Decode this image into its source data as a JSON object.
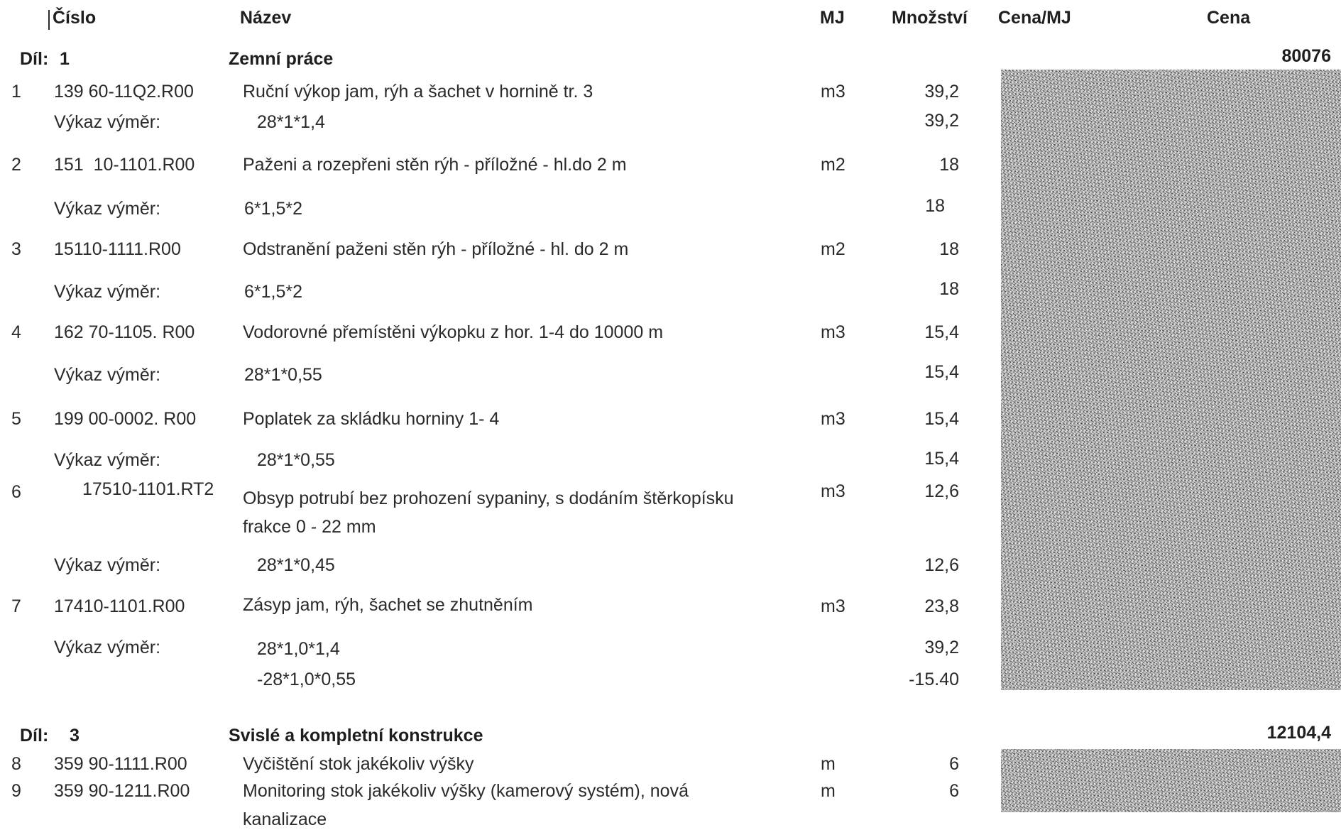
{
  "header": {
    "cislo": "Číslo",
    "nazev": "Název",
    "mj": "MJ",
    "mnozstvi": "Množství",
    "cena_mj": "Cena/MJ",
    "cena": "Cena"
  },
  "sections": [
    {
      "dil_label": "Díl:",
      "dil_number": "1",
      "title": "Zemní práce",
      "total": "80076"
    },
    {
      "dil_label": "Díl:",
      "dil_number": "3",
      "title": "Svislé a kompletní konstrukce",
      "total": "12104,4"
    }
  ],
  "items": [
    {
      "no": "1",
      "code": "139 60-11Q2.R00",
      "name": "Ruční výkop jam, rýh a šachet v hornině tr. 3",
      "mj": "m3",
      "qty": "39,2"
    },
    {
      "no": "2",
      "code": "151  10-1101.R00",
      "name": "Paženi a rozepřeni stěn rýh - příložné - hl.do 2 m",
      "mj": "m2",
      "qty": "18"
    },
    {
      "no": "3",
      "code": "15110-1111.R00",
      "name": "Odstranění paženi stěn rýh - příložné - hl. do 2 m",
      "mj": "m2",
      "qty": "18"
    },
    {
      "no": "4",
      "code": "162 70-1105. R00",
      "name": "Vodorovné přemístěni výkopku z hor. 1-4 do 10000 m",
      "mj": "m3",
      "qty": "15,4"
    },
    {
      "no": "5",
      "code": "199 00-0002. R00",
      "name": "Poplatek za skládku horniny 1- 4",
      "mj": "m3",
      "qty": "15,4"
    },
    {
      "no": "6",
      "code": "17510-1101.RT2",
      "name": "Obsyp potrubí bez prohození sypaniny, s dodáním štěrkopísku",
      "name_line2": "frakce 0 - 22 mm",
      "mj": "m3",
      "qty": "12,6"
    },
    {
      "no": "7",
      "code": "17410-1101.R00",
      "name": "Zásyp jam, rýh, šachet se zhutněním",
      "mj": "m3",
      "qty": "23,8"
    },
    {
      "no": "8",
      "code": "359 90-1111.R00",
      "name": "Vyčištění stok jakékoliv výšky",
      "mj": "m",
      "qty": "6"
    },
    {
      "no": "9",
      "code": "359 90-1211.R00",
      "name": "Monitoring stok jakékoliv výšky (kamerový systém), nová",
      "name_line2": "kanalizace",
      "mj": "m",
      "qty": "6"
    }
  ],
  "vykaz": [
    {
      "label": "Výkaz výměr:",
      "formula": "28*1*1,4",
      "qty": "39,2"
    },
    {
      "label": "Výkaz výměr:",
      "formula": "6*1,5*2",
      "qty": "18"
    },
    {
      "label": "Výkaz výměr:",
      "formula": "6*1,5*2",
      "qty": "18"
    },
    {
      "label": "Výkaz výměr:",
      "formula": "28*1*0,55",
      "qty": "15,4"
    },
    {
      "label": "Výkaz výměr:",
      "formula": "28*1*0,55",
      "qty": "15,4"
    },
    {
      "label": "Výkaz výměr:",
      "formula": "28*1*0,45",
      "qty": "12,6"
    },
    {
      "label": "Výkaz výměr:",
      "formula": "28*1,0*1,4",
      "qty": "39,2",
      "formula2": "-28*1,0*0,55",
      "qty2": "-15.40"
    }
  ]
}
